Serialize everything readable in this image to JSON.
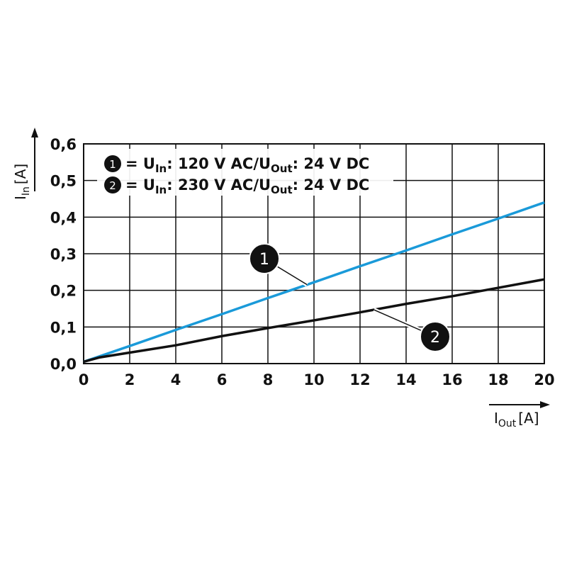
{
  "chart_data": {
    "type": "line",
    "xlabel": "I",
    "xlabel_sub": "Out",
    "xlabel_unit": "[A]",
    "ylabel": "I",
    "ylabel_sub": "In",
    "ylabel_unit": "[A]",
    "xlim": [
      0,
      20
    ],
    "ylim": [
      0,
      0.6
    ],
    "xticks": [
      "0",
      "2",
      "4",
      "6",
      "8",
      "10",
      "12",
      "14",
      "16",
      "18",
      "20"
    ],
    "yticks": [
      "0,0",
      "0,1",
      "0,2",
      "0,3",
      "0,4",
      "0,5",
      "0,6"
    ],
    "grid": true,
    "legend_placement": "top-left",
    "series": [
      {
        "name": "1",
        "legend": {
          "pre": "= U",
          "sub1": "In",
          "mid": ": 120 V AC/U",
          "sub2": "Out",
          "post": ": 24 V DC"
        },
        "color": "#1a9ad9",
        "x": [
          0,
          2,
          4,
          6,
          8,
          10,
          12,
          14,
          16,
          18,
          20
        ],
        "y": [
          0.005,
          0.048,
          0.092,
          0.135,
          0.179,
          0.222,
          0.266,
          0.309,
          0.353,
          0.396,
          0.44
        ]
      },
      {
        "name": "2",
        "legend": {
          "pre": "= U",
          "sub1": "In",
          "mid": ": 230 V AC/U",
          "sub2": "Out",
          "post": ": 24 V DC"
        },
        "color": "#111111",
        "x": [
          0,
          0.7,
          2,
          4,
          6,
          8,
          10,
          12,
          14,
          16,
          18,
          20
        ],
        "y": [
          0.005,
          0.017,
          0.03,
          0.05,
          0.075,
          0.097,
          0.118,
          0.14,
          0.163,
          0.184,
          0.207,
          0.23
        ]
      }
    ],
    "annotations": [
      {
        "label": "1",
        "series": "1",
        "at_x": 9.7
      },
      {
        "label": "2",
        "series": "2",
        "at_x": 12.6
      }
    ]
  }
}
